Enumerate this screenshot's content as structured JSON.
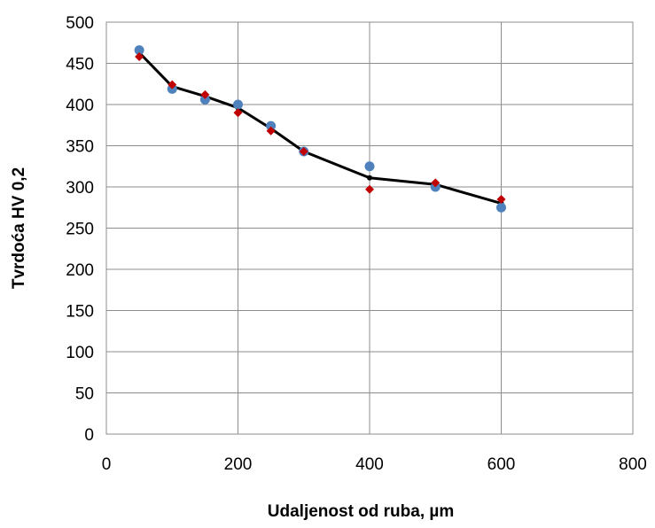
{
  "chart_data": {
    "type": "line",
    "title": "",
    "xlabel": "Udaljenost od ruba, µm",
    "ylabel": "Tvrdoća HV 0,2",
    "xlim": [
      0,
      800
    ],
    "ylim": [
      0,
      500
    ],
    "xticks": [
      0,
      200,
      400,
      600,
      800
    ],
    "yticks": [
      0,
      50,
      100,
      150,
      200,
      250,
      300,
      350,
      400,
      450,
      500
    ],
    "grid": true,
    "legend": "none",
    "series": [
      {
        "marker": "circle",
        "color": "#4f81bd",
        "x": [
          50,
          100,
          150,
          200,
          250,
          300,
          400,
          500,
          600
        ],
        "y": [
          466,
          419,
          406,
          400,
          374,
          343,
          325,
          300,
          275
        ]
      },
      {
        "marker": "diamond",
        "color": "#c00000",
        "x": [
          50,
          100,
          150,
          200,
          250,
          300,
          400,
          500,
          600
        ],
        "y": [
          458,
          424,
          412,
          390,
          368,
          343,
          297,
          305,
          285
        ]
      },
      {
        "marker": "line",
        "color": "#000000",
        "x": [
          50,
          100,
          150,
          200,
          250,
          300,
          400,
          500,
          600
        ],
        "y": [
          463,
          422,
          410,
          396,
          371,
          343,
          311,
          303,
          280
        ]
      }
    ]
  }
}
